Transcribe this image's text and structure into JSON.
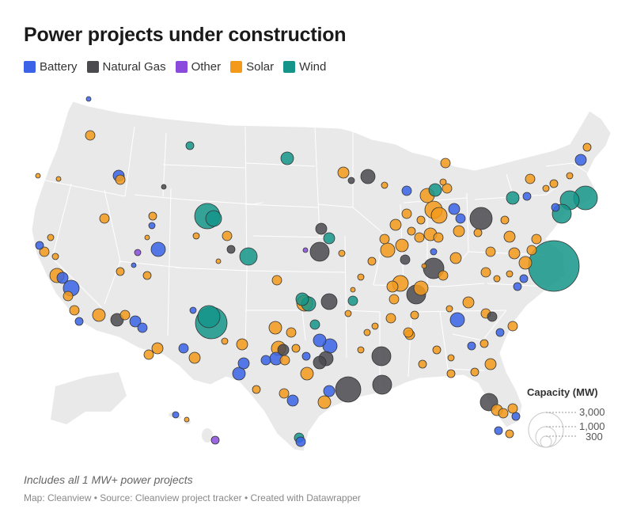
{
  "header": {
    "title": "Power projects under construction"
  },
  "legend": [
    {
      "label": "Battery",
      "color": "#3a63e8"
    },
    {
      "label": "Natural Gas",
      "color": "#4a4a4f"
    },
    {
      "label": "Other",
      "color": "#8a4bdc"
    },
    {
      "label": "Solar",
      "color": "#f39a1b"
    },
    {
      "label": "Wind",
      "color": "#15958a"
    }
  ],
  "size_legend": {
    "title": "Capacity (MW)",
    "labels": [
      "3,000",
      "1,000",
      "300"
    ]
  },
  "footer": {
    "note": "Includes all 1 MW+ power projects",
    "credit": "Map: Cleanview • Source: Cleanview project tracker • Created with Datawrapper"
  }
}
